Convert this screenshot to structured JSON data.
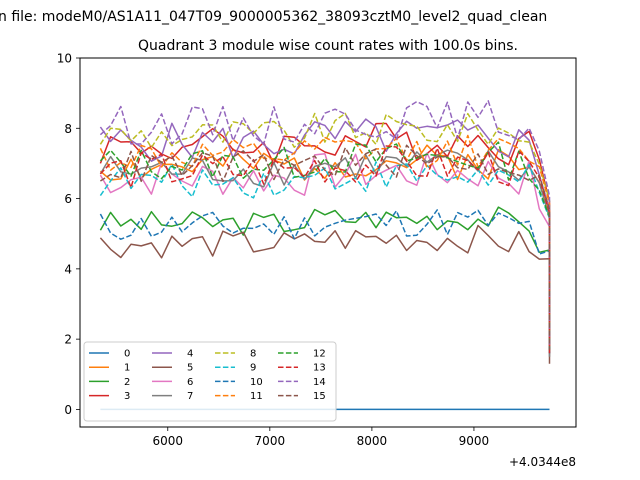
{
  "figure": {
    "suptitle": "n file: modeM0/AS1A11_047T09_9000005362_38093cztM0_level2_quad_clean",
    "title": "Quadrant 3 module wise count rates with 100.0s bins.",
    "offset_text": "+4.0344e8"
  },
  "chart_data": {
    "type": "line",
    "title": "Quadrant 3 module wise count rates with 100.0s bins.",
    "xlabel": "",
    "ylabel": "",
    "x_offset": 403440000,
    "x_start": 5340,
    "x_step": 100,
    "n_points": 45,
    "xlim": [
      5140,
      10000
    ],
    "ylim": [
      -0.5,
      10
    ],
    "xticks": [
      6000,
      7000,
      8000,
      9000
    ],
    "yticks": [
      0,
      2,
      4,
      6,
      8,
      10
    ],
    "grid": false,
    "legend": {
      "location": "lower-left",
      "columns": 4
    },
    "series": [
      {
        "name": "0",
        "color": "#1f77b4",
        "dash": "solid",
        "base": 0.0,
        "amp": 0.0,
        "last": 0.0,
        "seed": 1
      },
      {
        "name": "1",
        "color": "#ff7f0e",
        "dash": "solid",
        "base": 6.9,
        "amp": 0.32,
        "last": 1.8,
        "seed": 2
      },
      {
        "name": "2",
        "color": "#2ca02c",
        "dash": "solid",
        "base": 5.3,
        "amp": 0.22,
        "last": 1.6,
        "seed": 3
      },
      {
        "name": "3",
        "color": "#d62728",
        "dash": "solid",
        "base": 7.5,
        "amp": 0.35,
        "last": 1.7,
        "seed": 4
      },
      {
        "name": "4",
        "color": "#9467bd",
        "dash": "solid",
        "base": 7.6,
        "amp": 0.35,
        "last": 1.7,
        "seed": 5
      },
      {
        "name": "5",
        "color": "#8c564b",
        "dash": "solid",
        "base": 4.7,
        "amp": 0.25,
        "last": 1.3,
        "seed": 6
      },
      {
        "name": "6",
        "color": "#e377c2",
        "dash": "solid",
        "base": 6.6,
        "amp": 0.35,
        "last": 1.7,
        "seed": 7
      },
      {
        "name": "7",
        "color": "#7f7f7f",
        "dash": "solid",
        "base": 6.8,
        "amp": 0.3,
        "last": 1.5,
        "seed": 8
      },
      {
        "name": "8",
        "color": "#bcbd22",
        "dash": "dashed",
        "base": 7.8,
        "amp": 0.3,
        "last": 1.9,
        "seed": 9
      },
      {
        "name": "9",
        "color": "#17becf",
        "dash": "dashed",
        "base": 6.5,
        "amp": 0.3,
        "last": 1.7,
        "seed": 10
      },
      {
        "name": "10",
        "color": "#1f77b4",
        "dash": "dashed",
        "base": 5.2,
        "amp": 0.28,
        "last": 1.6,
        "seed": 11
      },
      {
        "name": "11",
        "color": "#ff7f0e",
        "dash": "dashed",
        "base": 7.2,
        "amp": 0.3,
        "last": 1.8,
        "seed": 12
      },
      {
        "name": "12",
        "color": "#2ca02c",
        "dash": "dashed",
        "base": 7.0,
        "amp": 0.3,
        "last": 1.7,
        "seed": 13
      },
      {
        "name": "13",
        "color": "#d62728",
        "dash": "dashed",
        "base": 6.8,
        "amp": 0.35,
        "last": 1.6,
        "seed": 14
      },
      {
        "name": "14",
        "color": "#9467bd",
        "dash": "dashed",
        "base": 8.1,
        "amp": 0.35,
        "last": 1.8,
        "seed": 15
      },
      {
        "name": "15",
        "color": "#8c564b",
        "dash": "dashed",
        "base": 6.9,
        "amp": 0.3,
        "last": 1.7,
        "seed": 16
      }
    ]
  }
}
